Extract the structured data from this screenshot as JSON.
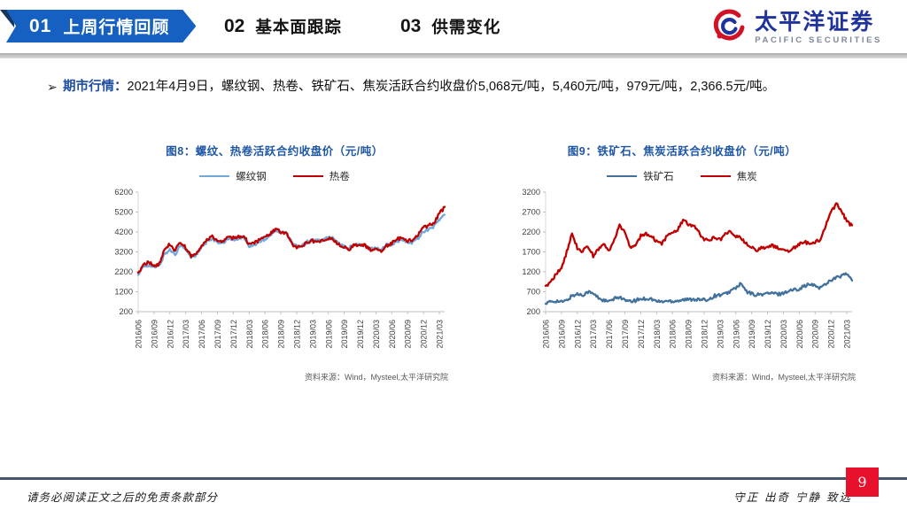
{
  "header": {
    "sections": [
      {
        "num": "01",
        "label": "上周行情回顾",
        "active": true
      },
      {
        "num": "02",
        "label": "基本面跟踪",
        "active": false
      },
      {
        "num": "03",
        "label": "供需变化",
        "active": false
      }
    ],
    "logo": {
      "cn": "太平洋证券",
      "en": "PACIFIC SECURITIES"
    }
  },
  "content": {
    "bullet_glyph": "➢",
    "bullet_label": "期市行情：",
    "bullet_text": "2021年4月9日，螺纹钢、热卷、铁矿石、焦炭活跃合约收盘价5,068元/吨，5,460元/吨，979元/吨，2,366.5元/吨。"
  },
  "chart_data": [
    {
      "type": "line",
      "title": "图8：螺纹、热卷活跃合约收盘价（元/吨）",
      "source": "资料来源：Wind，Mysteel,太平洋研究院",
      "ylim": [
        200,
        6200
      ],
      "y_ticks": [
        6200,
        5200,
        4200,
        3200,
        2200,
        1200,
        200
      ],
      "x_start": "2016/06",
      "x_end": "2021/04",
      "x_ticks": [
        "2016/06",
        "2016/09",
        "2016/12",
        "2017/03",
        "2017/06",
        "2017/09",
        "2017/12",
        "2018/03",
        "2018/06",
        "2018/09",
        "2018/12",
        "2019/03",
        "2019/06",
        "2019/09",
        "2019/12",
        "2020/03",
        "2020/06",
        "2020/09",
        "2020/12",
        "2021/03"
      ],
      "grid": false,
      "legend_position": "top",
      "series": [
        {
          "name": "螺纹钢",
          "color": "#6FA8DC",
          "values": [
            2050,
            2450,
            2550,
            2400,
            2500,
            3100,
            3300,
            3100,
            3550,
            3300,
            2950,
            3050,
            3400,
            3700,
            3900,
            3650,
            3600,
            3900,
            3800,
            3900,
            3950,
            3450,
            3550,
            3700,
            3850,
            4050,
            4300,
            4150,
            4200,
            3700,
            3450,
            3550,
            3700,
            3800,
            3750,
            3800,
            3950,
            3850,
            3600,
            3450,
            3400,
            3600,
            3550,
            3450,
            3350,
            3400,
            3300,
            3550,
            3600,
            3750,
            3800,
            3650,
            3700,
            3900,
            4250,
            4300,
            4500,
            4800,
            5068
          ]
        },
        {
          "name": "热卷",
          "color": "#C00000",
          "values": [
            2150,
            2550,
            2700,
            2500,
            2600,
            3300,
            3600,
            3250,
            3700,
            3400,
            2950,
            3100,
            3450,
            3800,
            3950,
            3750,
            3700,
            3950,
            3900,
            3950,
            4000,
            3550,
            3650,
            3800,
            3900,
            4100,
            4350,
            4200,
            4150,
            3650,
            3400,
            3500,
            3650,
            3750,
            3700,
            3750,
            3900,
            3800,
            3550,
            3400,
            3350,
            3550,
            3600,
            3500,
            3300,
            3350,
            3200,
            3500,
            3650,
            3850,
            3900,
            3750,
            3800,
            4050,
            4450,
            4500,
            4700,
            5100,
            5460
          ]
        }
      ]
    },
    {
      "type": "line",
      "title": "图9：铁矿石、焦炭活跃合约收盘价（元/吨）",
      "source": "资料来源：Wind，Mysteel,太平洋研究院",
      "ylim": [
        200,
        3200
      ],
      "y_ticks": [
        3200,
        2700,
        2200,
        1700,
        1200,
        700,
        200
      ],
      "x_start": "2016/06",
      "x_end": "2021/04",
      "x_ticks": [
        "2016/06",
        "2016/09",
        "2016/12",
        "2017/03",
        "2017/06",
        "2017/09",
        "2017/12",
        "2018/03",
        "2018/06",
        "2018/09",
        "2018/12",
        "2019/03",
        "2019/06",
        "2019/09",
        "2019/12",
        "2020/03",
        "2020/06",
        "2020/09",
        "2020/12",
        "2021/03"
      ],
      "grid": false,
      "legend_position": "top",
      "series": [
        {
          "name": "铁矿石",
          "color": "#41719C",
          "values": [
            400,
            450,
            470,
            440,
            480,
            600,
            640,
            620,
            700,
            650,
            550,
            480,
            450,
            520,
            580,
            480,
            450,
            480,
            520,
            530,
            520,
            460,
            450,
            470,
            465,
            480,
            500,
            500,
            520,
            500,
            490,
            520,
            600,
            620,
            640,
            720,
            800,
            900,
            700,
            650,
            620,
            640,
            660,
            660,
            640,
            670,
            720,
            750,
            780,
            850,
            880,
            850,
            800,
            900,
            1000,
            1050,
            1100,
            1150,
            979
          ]
        },
        {
          "name": "焦炭",
          "color": "#C00000",
          "values": [
            850,
            950,
            1150,
            1300,
            1700,
            2150,
            1800,
            1700,
            1850,
            1600,
            1750,
            1900,
            1700,
            2000,
            2350,
            2200,
            1800,
            1850,
            2100,
            2150,
            2100,
            1950,
            1900,
            2100,
            2150,
            2250,
            2500,
            2400,
            2350,
            2200,
            2000,
            2000,
            2050,
            2000,
            2150,
            2200,
            2100,
            2050,
            1900,
            1800,
            1750,
            1800,
            1850,
            1850,
            1800,
            1750,
            1700,
            1800,
            1900,
            1950,
            1900,
            1950,
            2000,
            2350,
            2700,
            2900,
            2750,
            2450,
            2366.5
          ]
        }
      ]
    }
  ],
  "footer": {
    "disclaimer": "请务必阅读正文之后的免责条款部分",
    "motto": "守正 出奇 宁静 致远",
    "page": "9"
  },
  "colors": {
    "banner_blue": "#1560C0",
    "accent_navy": "#17375E",
    "title_blue": "#1F57A5",
    "label_blue": "#1D4DA1",
    "logo_blue": "#20339B",
    "logo_red": "#D11226",
    "page_red": "#E8112D",
    "footer_line": "#44546A"
  }
}
